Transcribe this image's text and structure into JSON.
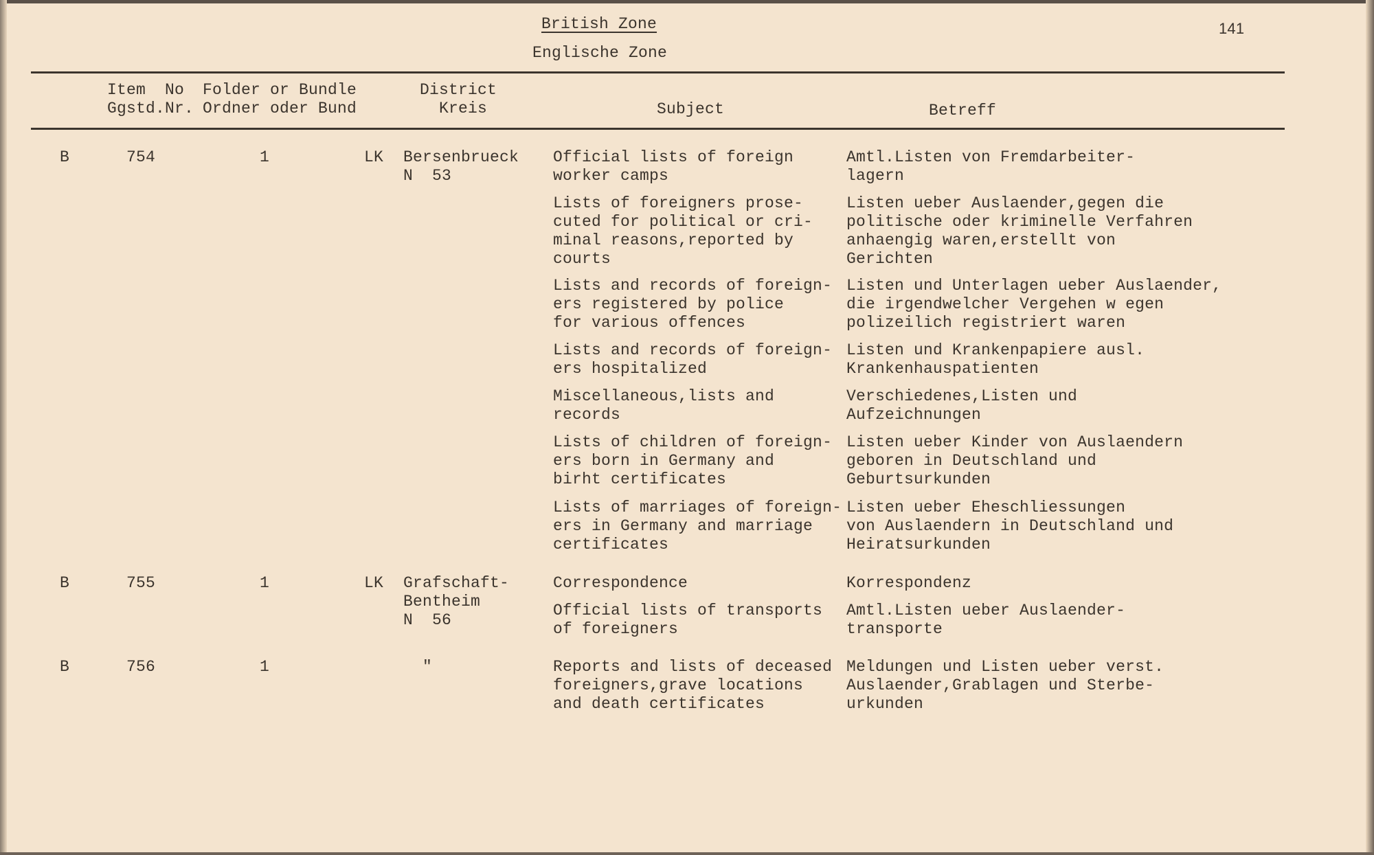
{
  "header": {
    "title": "British Zone",
    "subtitle": "Englische Zone",
    "page_number": "141"
  },
  "columns": {
    "item": "Item  No\nGgstd.Nr.",
    "folder": "Folder or Bundle\nOrdner oder Bund",
    "district": "District\n  Kreis",
    "subject": "Subject",
    "betreff": "Betreff"
  },
  "rows": [
    {
      "zone": "B",
      "item_no": "754",
      "folder": "1",
      "type": "LK",
      "district": "Bersenbrueck\nN  53",
      "entries": [
        {
          "subject": "Official lists of foreign\nworker camps",
          "betreff": "Amtl.Listen von Fremdarbeiter-\nlagern"
        },
        {
          "subject": "Lists of foreigners prose-\ncuted for political or cri-\nminal reasons,reported by\ncourts",
          "betreff": "Listen ueber Auslaender,gegen die\npolitische oder kriminelle Verfahren\nanhaengig waren,erstellt von\nGerichten"
        },
        {
          "subject": "Lists and records of foreign-\ners registered by police\nfor various offences",
          "betreff": "Listen und Unterlagen ueber Auslaender,\ndie irgendwelcher Vergehen w egen\npolizeilich registriert waren"
        },
        {
          "subject": "Lists and records of foreign-\ners hospitalized",
          "betreff": "Listen und Krankenpapiere ausl.\nKrankenhauspatienten"
        },
        {
          "subject": "Miscellaneous,lists and\nrecords",
          "betreff": "Verschiedenes,Listen und\nAufzeichnungen"
        },
        {
          "subject": "Lists of children of foreign-\ners born in Germany and\nbirht certificates",
          "betreff": "Listen ueber Kinder von Auslaendern\ngeboren in Deutschland und\nGeburtsurkunden"
        },
        {
          "subject": "Lists of marriages of foreign-\ners in Germany and marriage\ncertificates",
          "betreff": "Listen ueber Eheschliessungen\nvon Auslaendern in Deutschland und\nHeiratsurkunden"
        }
      ]
    },
    {
      "zone": "B",
      "item_no": "755",
      "folder": "1",
      "type": "LK",
      "district": "Grafschaft-\nBentheim\nN  56",
      "entries": [
        {
          "subject": "Correspondence",
          "betreff": "Korrespondenz"
        },
        {
          "subject": "Official lists of transports\nof foreigners",
          "betreff": "Amtl.Listen ueber Auslaender-\ntransporte"
        }
      ]
    },
    {
      "zone": "B",
      "item_no": "756",
      "folder": "1",
      "type": "",
      "district": "\"",
      "entries": [
        {
          "subject": "Reports and lists of deceased\nforeigners,grave locations\nand death certificates",
          "betreff": "Meldungen und Listen ueber verst.\nAuslaender,Grablagen und Sterbe-\nurkunden"
        }
      ]
    }
  ]
}
